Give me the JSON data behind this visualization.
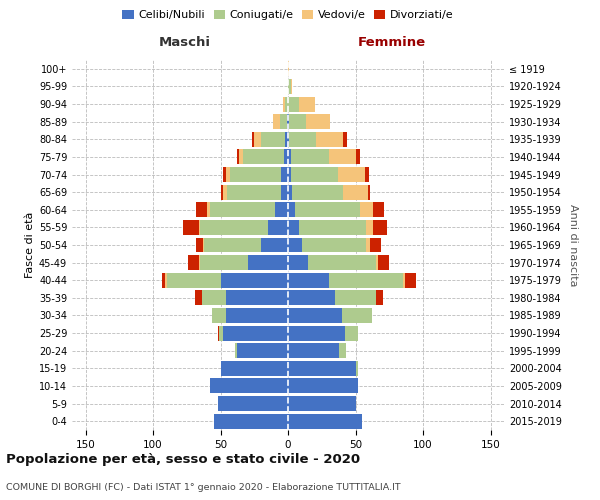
{
  "age_groups": [
    "0-4",
    "5-9",
    "10-14",
    "15-19",
    "20-24",
    "25-29",
    "30-34",
    "35-39",
    "40-44",
    "45-49",
    "50-54",
    "55-59",
    "60-64",
    "65-69",
    "70-74",
    "75-79",
    "80-84",
    "85-89",
    "90-94",
    "95-99",
    "100+"
  ],
  "birth_years": [
    "2015-2019",
    "2010-2014",
    "2005-2009",
    "2000-2004",
    "1995-1999",
    "1990-1994",
    "1985-1989",
    "1980-1984",
    "1975-1979",
    "1970-1974",
    "1965-1969",
    "1960-1964",
    "1955-1959",
    "1950-1954",
    "1945-1949",
    "1940-1944",
    "1935-1939",
    "1930-1934",
    "1925-1929",
    "1920-1924",
    "≤ 1919"
  ],
  "maschi": {
    "celibi": [
      55,
      52,
      58,
      50,
      38,
      48,
      46,
      46,
      50,
      30,
      20,
      15,
      10,
      5,
      5,
      3,
      2,
      1,
      0,
      0,
      0
    ],
    "coniugati": [
      0,
      0,
      0,
      0,
      1,
      3,
      10,
      18,
      40,
      35,
      42,
      50,
      48,
      40,
      38,
      30,
      18,
      5,
      2,
      0,
      0
    ],
    "vedovi": [
      0,
      0,
      0,
      0,
      0,
      0,
      0,
      0,
      1,
      1,
      1,
      1,
      2,
      3,
      3,
      3,
      5,
      5,
      2,
      0,
      0
    ],
    "divorziati": [
      0,
      0,
      0,
      0,
      0,
      1,
      0,
      5,
      2,
      8,
      5,
      12,
      8,
      2,
      2,
      2,
      2,
      0,
      0,
      0,
      0
    ]
  },
  "femmine": {
    "nubili": [
      55,
      50,
      52,
      50,
      38,
      42,
      40,
      35,
      30,
      15,
      10,
      8,
      5,
      3,
      2,
      2,
      1,
      1,
      0,
      0,
      0
    ],
    "coniugate": [
      0,
      0,
      0,
      2,
      5,
      10,
      22,
      30,
      55,
      50,
      48,
      50,
      48,
      38,
      35,
      28,
      20,
      12,
      8,
      2,
      0
    ],
    "vedove": [
      0,
      0,
      0,
      0,
      0,
      0,
      0,
      0,
      2,
      2,
      3,
      5,
      10,
      18,
      20,
      20,
      20,
      18,
      12,
      1,
      1
    ],
    "divorziate": [
      0,
      0,
      0,
      0,
      0,
      0,
      0,
      5,
      8,
      8,
      8,
      10,
      8,
      2,
      3,
      3,
      3,
      0,
      0,
      0,
      0
    ]
  },
  "colors": {
    "celibi_nubili": "#4472C4",
    "coniugati_e": "#AECB8E",
    "vedovi_e": "#F5C47A",
    "divorziati_e": "#CC2200"
  },
  "title": "Popolazione per età, sesso e stato civile - 2020",
  "subtitle": "COMUNE DI BORGHI (FC) - Dati ISTAT 1° gennaio 2020 - Elaborazione TUTTITALIA.IT",
  "xlabel_left": "Maschi",
  "xlabel_right": "Femmine",
  "ylabel_left": "Fasce di età",
  "ylabel_right": "Anni di nascita",
  "xlim": 160,
  "background_color": "#ffffff",
  "grid_color": "#cccccc"
}
